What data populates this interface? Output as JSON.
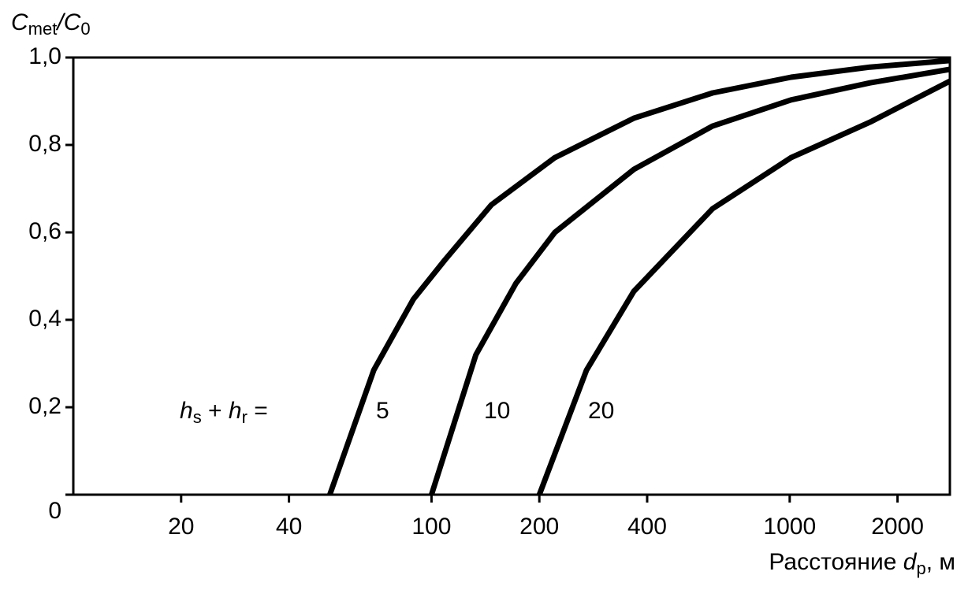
{
  "chart_data": {
    "type": "line",
    "y_label": [
      "C",
      "met",
      "/C",
      "0"
    ],
    "x_label": [
      "Расстояние ",
      "d",
      "p",
      ", м"
    ],
    "annotation": [
      "h",
      "s",
      " + ",
      "h",
      "r",
      " ="
    ],
    "log_x": true,
    "xlim": [
      10,
      2800
    ],
    "ylim": [
      0,
      1.0
    ],
    "xticks": [
      20,
      40,
      100,
      200,
      400,
      1000,
      2000
    ],
    "yticks": [
      0,
      {
        "value": 0.2,
        "label": "0,2"
      },
      {
        "value": 0.4,
        "label": "0,4"
      },
      {
        "value": 0.6,
        "label": "0,6"
      },
      {
        "value": 0.8,
        "label": "0,8"
      },
      {
        "value": 1.0,
        "label": "1,0"
      }
    ],
    "color": "#000000",
    "series": [
      {
        "name": "5",
        "x": [
          52,
          69,
          89,
          109,
          147,
          221,
          367,
          609,
          1009,
          1675,
          2800
        ],
        "values": [
          0,
          0.285,
          0.447,
          0.537,
          0.663,
          0.771,
          0.861,
          0.919,
          0.955,
          0.978,
          0.993
        ]
      },
      {
        "name": "10",
        "x": [
          100,
          133,
          172,
          221,
          367,
          609,
          1009,
          1675,
          2800
        ],
        "values": [
          0,
          0.32,
          0.483,
          0.6,
          0.744,
          0.843,
          0.903,
          0.942,
          0.973
        ]
      },
      {
        "name": "20",
        "x": [
          200,
          271,
          367,
          609,
          1009,
          1675,
          2800
        ],
        "values": [
          0,
          0.285,
          0.465,
          0.654,
          0.771,
          0.852,
          0.946
        ]
      }
    ]
  }
}
